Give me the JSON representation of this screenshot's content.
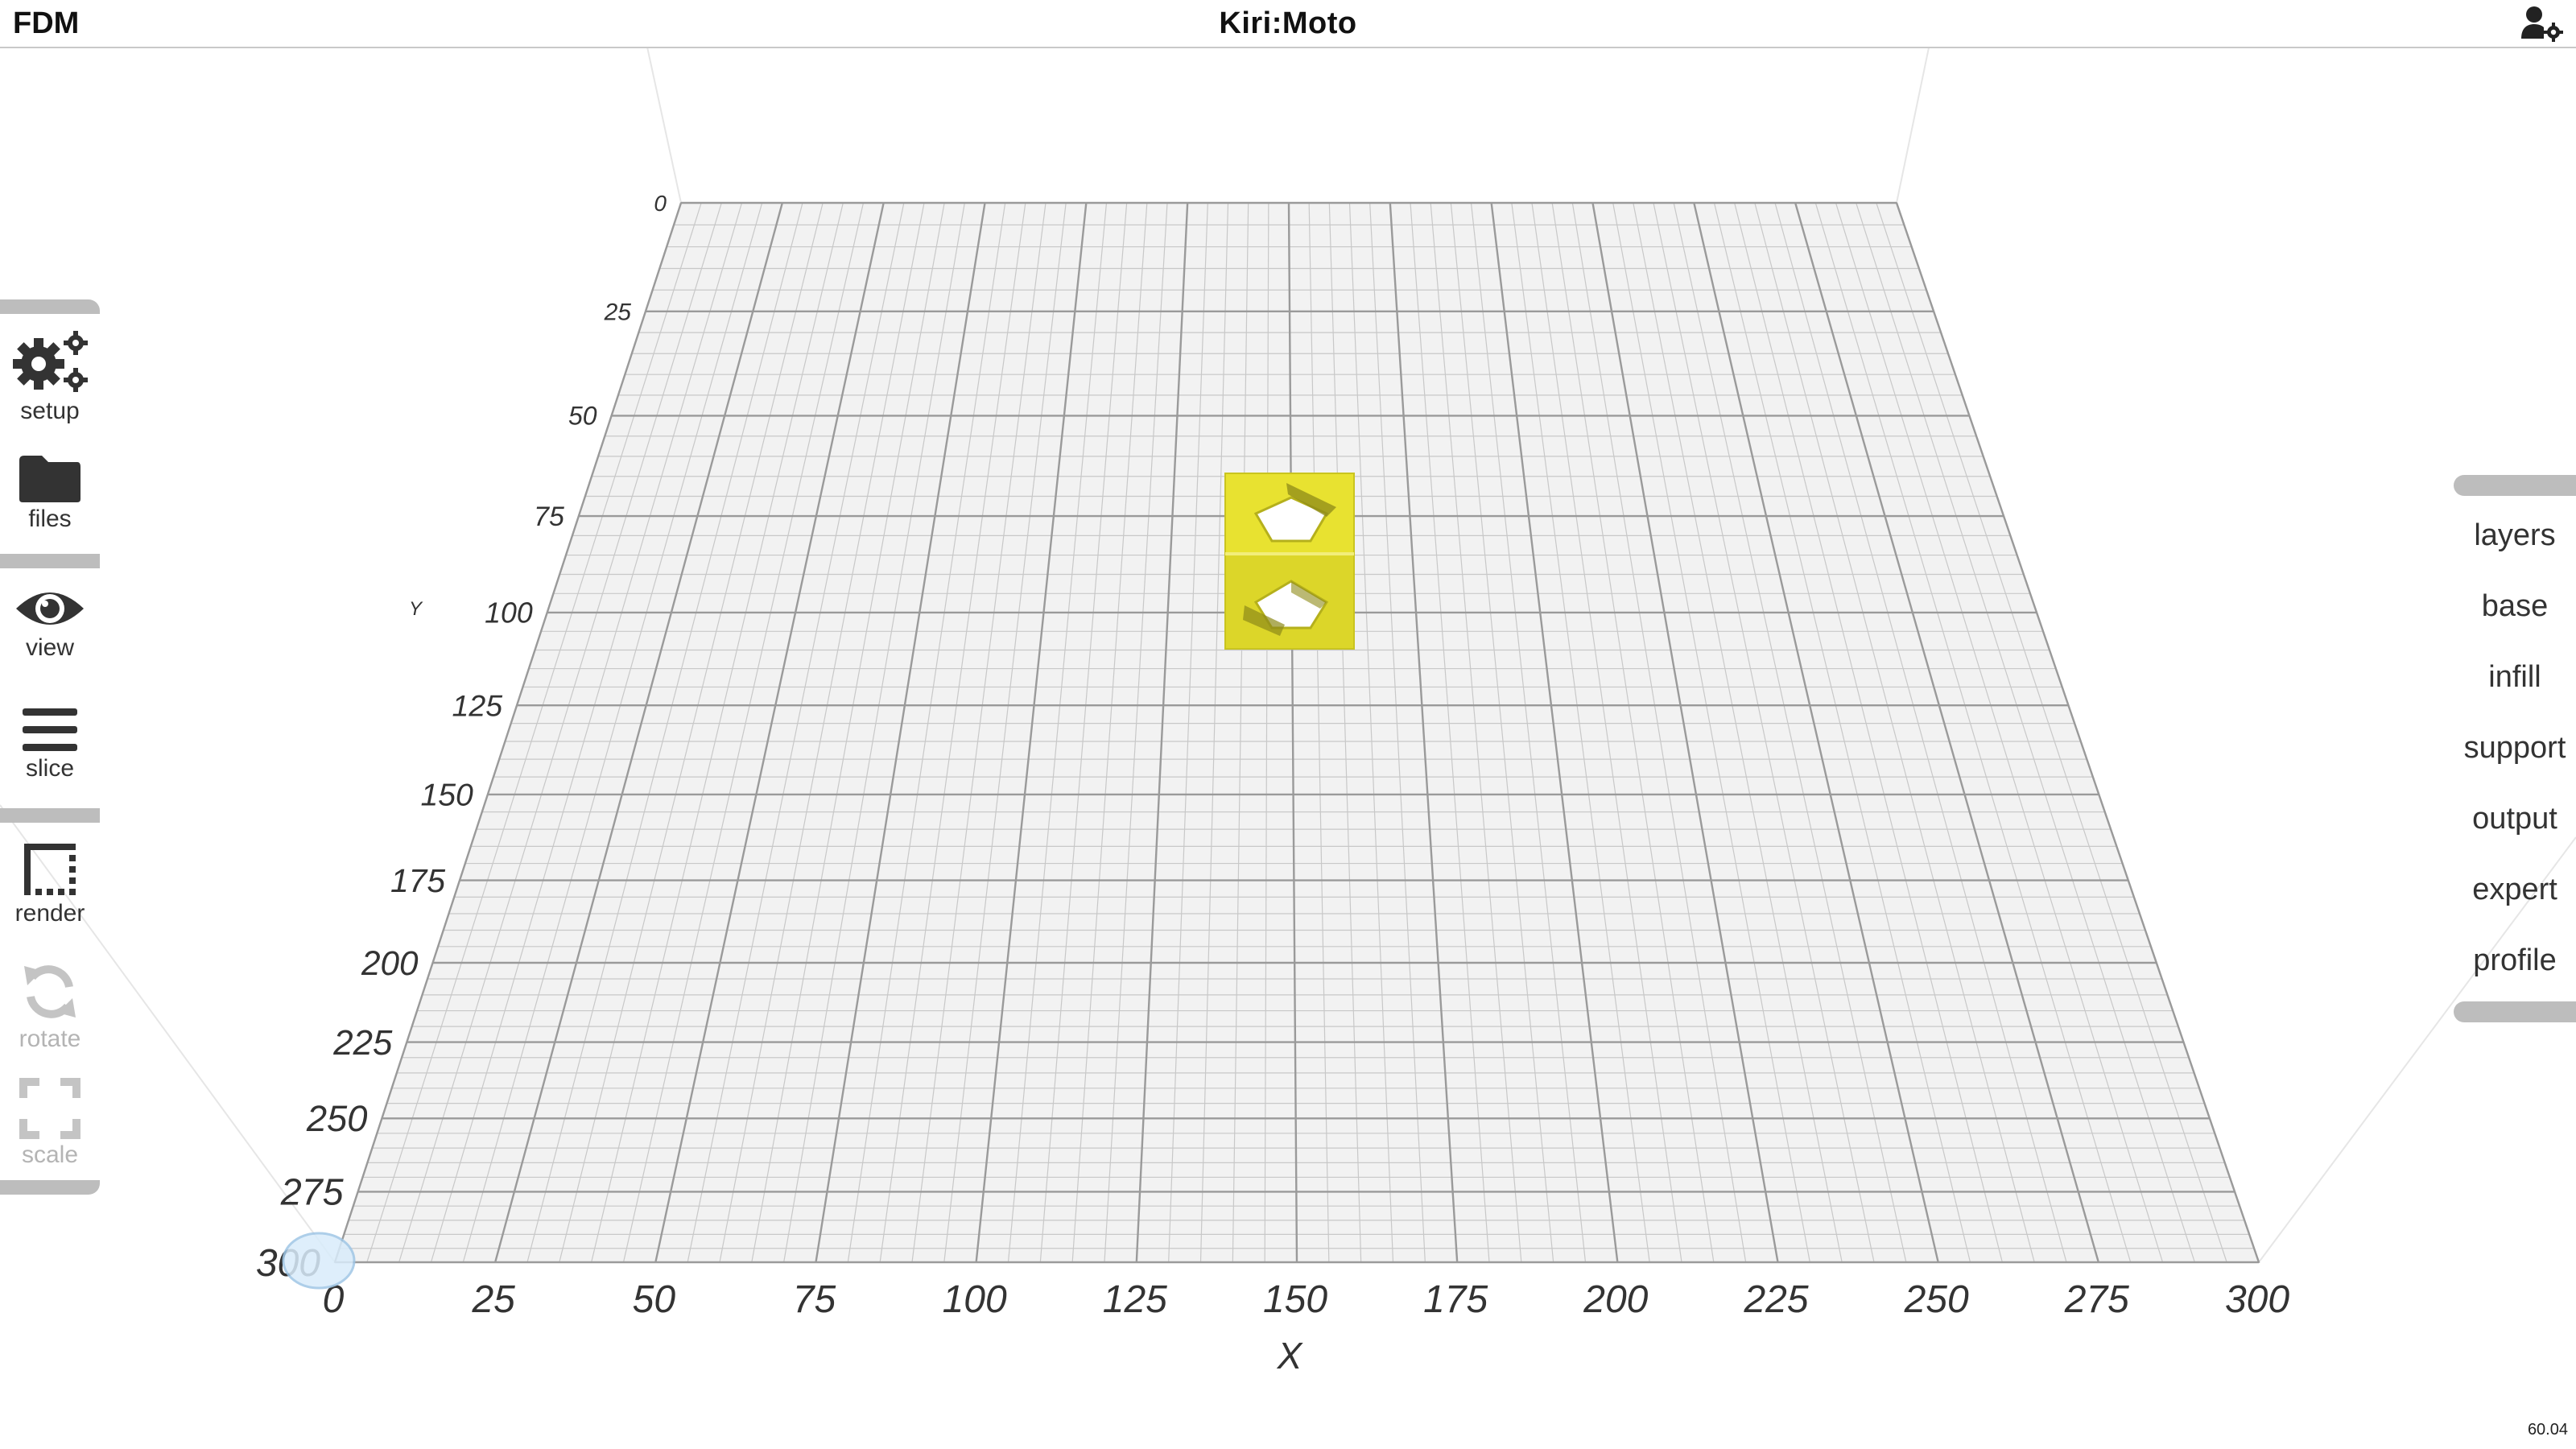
{
  "header": {
    "mode": "FDM",
    "title": "Kiri:Moto",
    "account_icon": "user-gear-icon"
  },
  "left_toolbar": {
    "tools": [
      {
        "label": "setup",
        "icon": "gears-icon",
        "enabled": true
      },
      {
        "label": "files",
        "icon": "folder-icon",
        "enabled": true
      },
      {
        "label": "view",
        "icon": "eye-icon",
        "enabled": true
      },
      {
        "label": "slice",
        "icon": "menu-lines-icon",
        "enabled": true
      },
      {
        "label": "render",
        "icon": "dotted-square-icon",
        "enabled": true
      },
      {
        "label": "rotate",
        "icon": "rotate-icon",
        "enabled": false
      },
      {
        "label": "scale",
        "icon": "expand-icon",
        "enabled": false
      }
    ]
  },
  "right_menu": {
    "items": [
      "layers",
      "base",
      "infill",
      "support",
      "output",
      "expert",
      "profile"
    ]
  },
  "workspace": {
    "x_axis_label": "X",
    "y_axis_label": "Y",
    "x_ticks": [
      "0",
      "25",
      "50",
      "75",
      "100",
      "125",
      "150",
      "175",
      "200",
      "225",
      "250",
      "275",
      "300"
    ],
    "y_ticks": [
      "0",
      "25",
      "50",
      "75",
      "100",
      "125",
      "150",
      "175",
      "200",
      "225",
      "250",
      "275",
      "300"
    ],
    "model_color": "#e8e230",
    "grid_major_color": "#9a9a9a",
    "grid_minor_color": "#c8c8c8",
    "bed_color": "#f2f2f2"
  },
  "status": {
    "fps": "60.04"
  }
}
